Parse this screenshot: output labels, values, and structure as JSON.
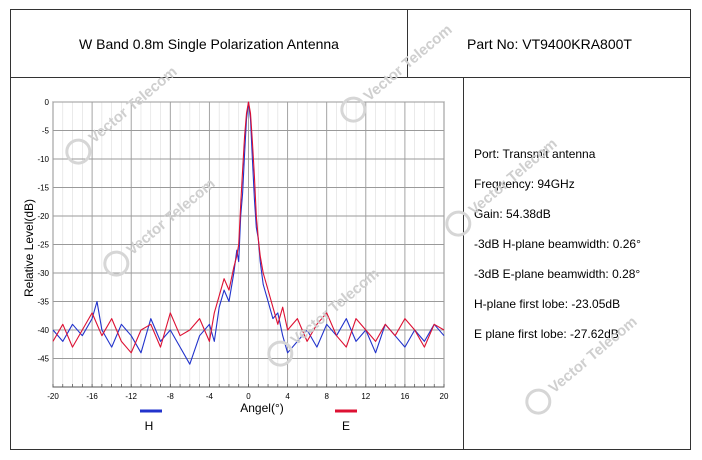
{
  "header": {
    "title": "W Band 0.8m Single Polarization Antenna",
    "part_no": "Part No: VT9400KRA800T"
  },
  "specs": [
    "Port: Transmit antenna",
    "Frequency: 94GHz",
    "Gain: 54.38dB",
    "-3dB H-plane beamwidth: 0.26°",
    "-3dB E-plane beamwidth: 0.28°",
    "H-plane first lobe: -23.05dB",
    "E plane first lobe: -27.62dB"
  ],
  "watermark_text": "Vector Telecom",
  "chart_data": {
    "type": "line",
    "xlabel": "Angel(°)",
    "ylabel": "Relative Level(dB)",
    "xlim": [
      -20,
      20
    ],
    "ylim": [
      -50,
      0
    ],
    "x_ticks": [
      -20,
      -16,
      -12,
      -8,
      -4,
      0,
      4,
      8,
      12,
      16,
      20
    ],
    "y_ticks": [
      0,
      -5,
      -10,
      -15,
      -20,
      -25,
      -30,
      -35,
      -40,
      -45
    ],
    "grid": true,
    "legend_position": "bottom",
    "series": [
      {
        "name": "H",
        "color": "#2233cc",
        "x": [
          -20,
          -19,
          -18,
          -17,
          -16,
          -15.5,
          -15,
          -14,
          -13,
          -12,
          -11,
          -10,
          -9,
          -8,
          -7,
          -6,
          -5,
          -4,
          -3.5,
          -3,
          -2.5,
          -2,
          -1.5,
          -1.2,
          -1,
          -0.8,
          -0.6,
          -0.4,
          -0.2,
          0,
          0.2,
          0.4,
          0.6,
          0.8,
          1,
          1.2,
          1.5,
          2,
          2.5,
          3,
          3.5,
          4,
          5,
          6,
          7,
          8,
          9,
          10,
          11,
          12,
          13,
          14,
          15,
          16,
          17,
          18,
          19,
          20
        ],
        "y": [
          -40,
          -42,
          -39,
          -41,
          -38,
          -35,
          -40,
          -43,
          -39,
          -41,
          -44,
          -38,
          -42,
          -40,
          -43,
          -46,
          -41,
          -39,
          -42,
          -36,
          -33,
          -35,
          -30,
          -26,
          -28,
          -20,
          -16,
          -9,
          -3,
          0,
          -3,
          -10,
          -17,
          -22,
          -24,
          -28,
          -32,
          -35,
          -38,
          -37,
          -41,
          -44,
          -42,
          -40,
          -43,
          -39,
          -41,
          -38,
          -42,
          -40,
          -44,
          -39,
          -41,
          -43,
          -40,
          -42,
          -39,
          -41
        ]
      },
      {
        "name": "E",
        "color": "#dd1133",
        "x": [
          -20,
          -19,
          -18,
          -17,
          -16,
          -15,
          -14,
          -13,
          -12,
          -11,
          -10,
          -9,
          -8,
          -7,
          -6,
          -5,
          -4,
          -3.5,
          -3,
          -2.5,
          -2,
          -1.5,
          -1.2,
          -1,
          -0.8,
          -0.6,
          -0.4,
          -0.2,
          0,
          0.2,
          0.4,
          0.6,
          0.8,
          1,
          1.2,
          1.5,
          2,
          2.5,
          3,
          3.5,
          4,
          5,
          6,
          7,
          8,
          9,
          10,
          11,
          12,
          13,
          14,
          15,
          16,
          17,
          18,
          19,
          20
        ],
        "y": [
          -42,
          -39,
          -43,
          -40,
          -37,
          -41,
          -38,
          -42,
          -44,
          -40,
          -39,
          -43,
          -37,
          -41,
          -40,
          -38,
          -42,
          -37,
          -34,
          -31,
          -33,
          -29,
          -27,
          -25,
          -18,
          -12,
          -6,
          -2,
          0,
          -2,
          -7,
          -13,
          -20,
          -24,
          -27,
          -30,
          -33,
          -36,
          -39,
          -36,
          -40,
          -38,
          -42,
          -39,
          -37,
          -41,
          -43,
          -38,
          -40,
          -42,
          -39,
          -41,
          -38,
          -40,
          -43,
          -39,
          -40
        ]
      }
    ]
  }
}
